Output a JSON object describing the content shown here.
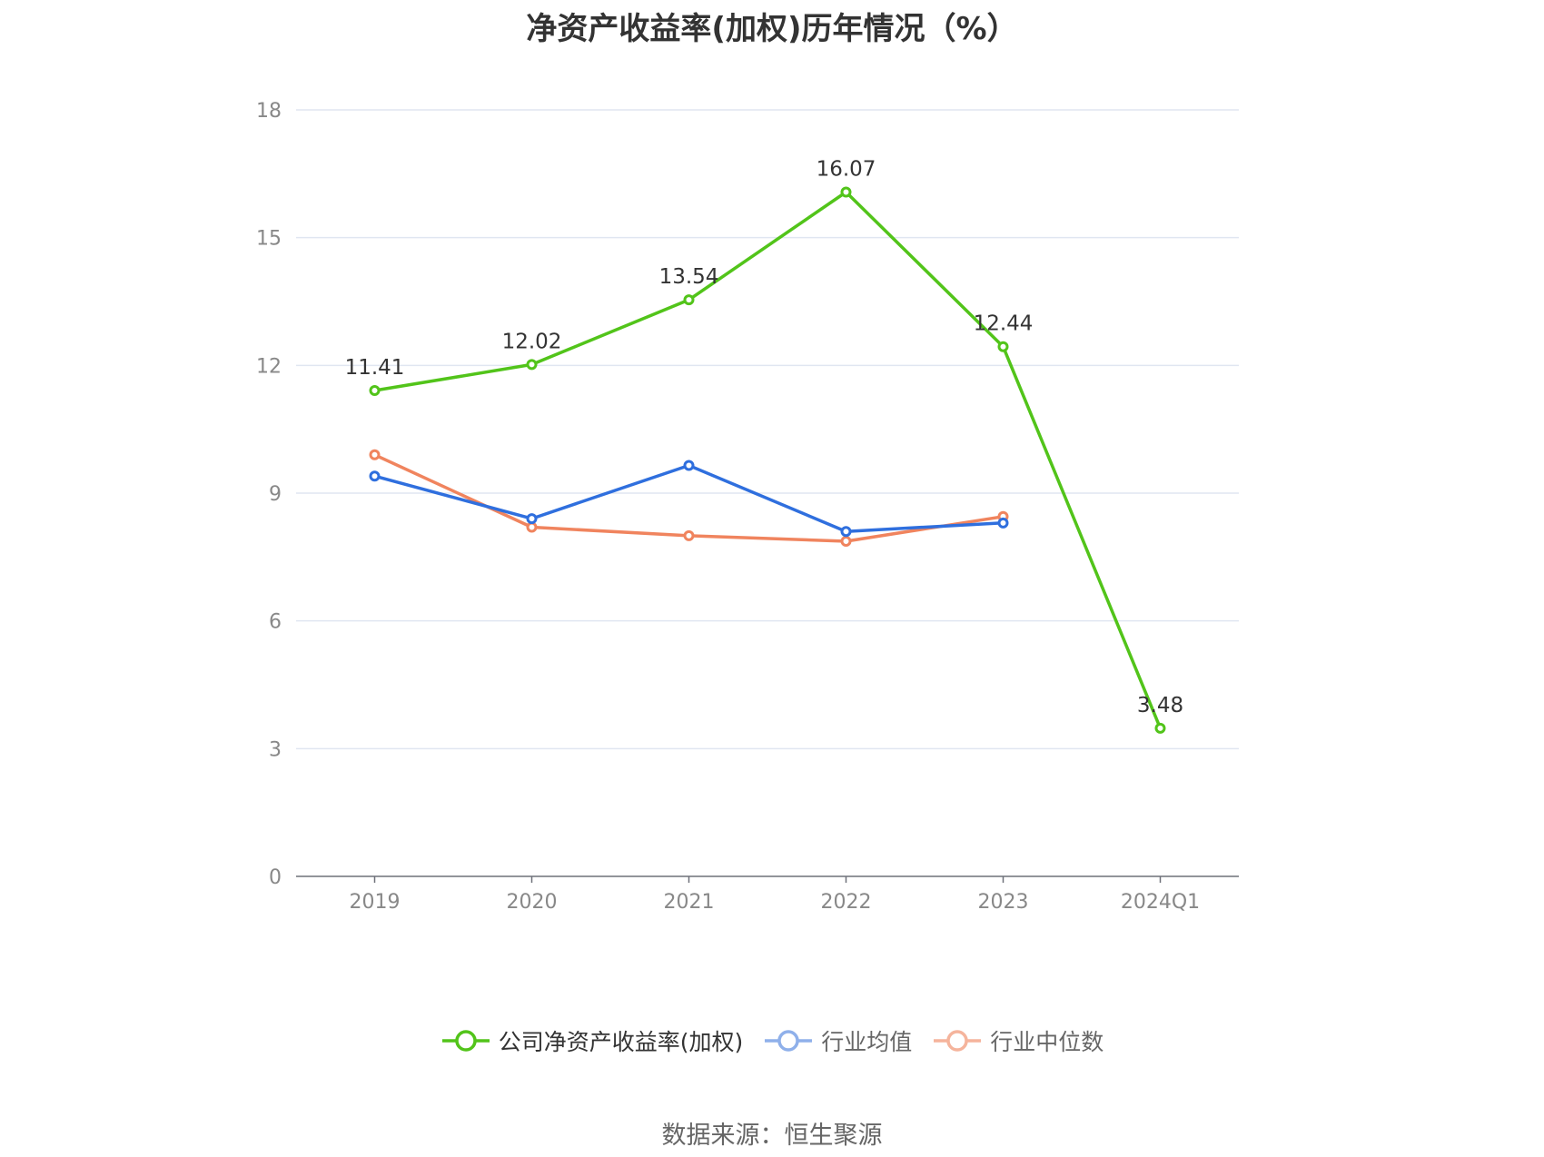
{
  "chart_data": {
    "type": "line",
    "title": "净资产收益率(加权)历年情况（%）",
    "categories": [
      "2019",
      "2020",
      "2021",
      "2022",
      "2023",
      "2024Q1"
    ],
    "ylim": [
      0,
      18
    ],
    "yticks": [
      0,
      3,
      6,
      9,
      12,
      15,
      18
    ],
    "grid": true,
    "legend_position": "bottom",
    "series": [
      {
        "name": "公司净资产收益率(加权)",
        "color": "#52c41a",
        "show_labels": true,
        "values": [
          11.41,
          12.02,
          13.54,
          16.07,
          12.44,
          3.48
        ]
      },
      {
        "name": "行业均值",
        "color": "#2f6fde",
        "show_labels": false,
        "values": [
          9.4,
          8.4,
          9.65,
          8.1,
          8.3,
          null
        ]
      },
      {
        "name": "行业中位数",
        "color": "#f0845e",
        "show_labels": false,
        "values": [
          9.9,
          8.2,
          8.0,
          7.87,
          8.45,
          null
        ]
      }
    ],
    "legend": [
      {
        "label": "公司净资产收益率(加权)",
        "color": "#52c41a",
        "active": true
      },
      {
        "label": "行业均值",
        "color": "#8fb0ea",
        "active": false
      },
      {
        "label": "行业中位数",
        "color": "#f5b49c",
        "active": false
      }
    ]
  },
  "source": "数据来源：恒生聚源"
}
